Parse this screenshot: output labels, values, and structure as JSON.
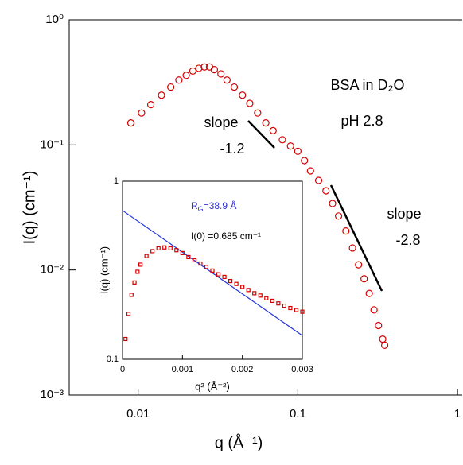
{
  "chart_data": [
    {
      "type": "scatter",
      "xscale": "log",
      "yscale": "log",
      "xlabel": "q  (Å⁻¹)",
      "ylabel": "I(q)  (cm⁻¹)",
      "xlim": [
        0.0037,
        1.07
      ],
      "ylim": [
        0.001,
        1
      ],
      "xticks": [
        0.01,
        0.1,
        1
      ],
      "yticks": [
        {
          "value": 1,
          "label": "10⁰"
        },
        {
          "value": 0.1,
          "label": "10⁻¹"
        },
        {
          "value": 0.01,
          "label": "10⁻²"
        },
        {
          "value": 0.001,
          "label": "10⁻³"
        }
      ],
      "annotations": [
        "BSA in D₂O",
        "pH 2.8",
        "slope",
        "-1.2",
        "slope",
        "-2.8"
      ],
      "x": [
        0.009,
        0.0105,
        0.012,
        0.014,
        0.016,
        0.018,
        0.02,
        0.022,
        0.024,
        0.026,
        0.028,
        0.03,
        0.033,
        0.036,
        0.04,
        0.045,
        0.05,
        0.056,
        0.063,
        0.07,
        0.08,
        0.09,
        0.1,
        0.11,
        0.12,
        0.135,
        0.15,
        0.165,
        0.18,
        0.2,
        0.22,
        0.24,
        0.26,
        0.28,
        0.3,
        0.32,
        0.34,
        0.35
      ],
      "series": [
        {
          "color": "#d40000",
          "marker": "circle",
          "values": [
            0.15,
            0.18,
            0.21,
            0.25,
            0.29,
            0.33,
            0.36,
            0.39,
            0.41,
            0.42,
            0.42,
            0.4,
            0.37,
            0.33,
            0.29,
            0.25,
            0.215,
            0.18,
            0.15,
            0.13,
            0.11,
            0.098,
            0.089,
            0.075,
            0.062,
            0.052,
            0.043,
            0.034,
            0.027,
            0.0205,
            0.015,
            0.011,
            0.0085,
            0.0065,
            0.0048,
            0.0036,
            0.0028,
            0.0025
          ]
        }
      ]
    },
    {
      "type": "scatter",
      "xscale": "linear",
      "yscale": "log",
      "xlabel": "q²  (Å⁻²)",
      "ylabel": "I(q)  (cm⁻¹)",
      "xlim": [
        0,
        0.003
      ],
      "ylim": [
        0.1,
        1
      ],
      "xticks": [
        0,
        0.001,
        0.002,
        0.003
      ],
      "yticks": [
        1,
        0.1
      ],
      "rg_label": {
        "main": "R",
        "sub": "G",
        "tail": "=38.9 Å"
      },
      "i0_label": "I(0) =0.685 cm⁻¹",
      "annotation_color": "#3333cc",
      "x": [
        5e-05,
        0.0001,
        0.00015,
        0.0002,
        0.00025,
        0.0003,
        0.0004,
        0.0005,
        0.0006,
        0.0007,
        0.0008,
        0.0009,
        0.001,
        0.0011,
        0.0012,
        0.0013,
        0.0014,
        0.0015,
        0.0016,
        0.0017,
        0.0018,
        0.0019,
        0.002,
        0.0021,
        0.0022,
        0.0023,
        0.0024,
        0.0025,
        0.0026,
        0.0027,
        0.0028,
        0.0029,
        0.003
      ],
      "series": [
        {
          "color": "#d40000",
          "marker": "square",
          "values": [
            0.13,
            0.18,
            0.23,
            0.27,
            0.31,
            0.34,
            0.38,
            0.405,
            0.42,
            0.425,
            0.42,
            0.41,
            0.395,
            0.375,
            0.36,
            0.345,
            0.33,
            0.315,
            0.3,
            0.29,
            0.275,
            0.265,
            0.255,
            0.245,
            0.235,
            0.228,
            0.22,
            0.213,
            0.206,
            0.2,
            0.194,
            0.189,
            0.185
          ]
        }
      ],
      "fit": {
        "color": "#2233dd",
        "x": [
          0,
          0.003
        ],
        "values": [
          0.685,
          0.136
        ]
      }
    }
  ]
}
